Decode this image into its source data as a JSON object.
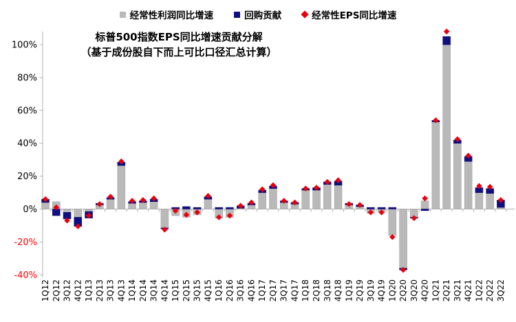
{
  "chart": {
    "title_line1": "标普500指数EPS同比增速贡献分解",
    "title_line2": "（基于成份股自下而上可比口径汇总计算）",
    "legend": [
      {
        "label": "经常性利润同比增速",
        "marker": "square",
        "color": "#b9b9b9"
      },
      {
        "label": "回购贡献",
        "marker": "square",
        "color": "#0f0f82"
      },
      {
        "label": "经常性EPS同比增速",
        "marker": "diamond",
        "color": "#e8000d"
      }
    ]
  },
  "chart_data": {
    "type": "bar",
    "stacked": true,
    "title": "标普500指数EPS同比增速贡献分解（基于成份股自下而上可比口径汇总计算）",
    "categories": [
      "1Q12",
      "2Q12",
      "3Q12",
      "4Q12",
      "1Q13",
      "2Q13",
      "3Q13",
      "4Q13",
      "1Q14",
      "2Q14",
      "3Q14",
      "4Q14",
      "1Q15",
      "2Q15",
      "3Q15",
      "4Q15",
      "1Q16",
      "2Q16",
      "3Q16",
      "4Q16",
      "1Q17",
      "2Q17",
      "3Q17",
      "4Q17",
      "1Q18",
      "2Q18",
      "3Q18",
      "4Q18",
      "1Q19",
      "2Q19",
      "3Q19",
      "4Q19",
      "1Q20",
      "2Q20",
      "3Q20",
      "4Q20",
      "1Q21",
      "2Q21",
      "3Q21",
      "4Q21",
      "1Q22",
      "2Q22",
      "3Q22"
    ],
    "series": [
      {
        "name": "经常性利润同比增速",
        "type": "bar",
        "color": "#b9b9b9",
        "stroke": "#9f9f9f",
        "values": [
          4,
          4.5,
          -2,
          -5,
          -1.5,
          2.5,
          6,
          26.5,
          3.5,
          4,
          4.5,
          -11.5,
          -4,
          -5,
          -3.5,
          6,
          -5.5,
          -5,
          0.5,
          2.5,
          10,
          12.5,
          4,
          3,
          11.5,
          11.5,
          15,
          14.5,
          2.5,
          1.5,
          -2.5,
          -2,
          -16,
          -36,
          -5,
          5,
          53,
          100,
          40,
          29,
          10,
          9.5,
          1
        ]
      },
      {
        "name": "回购贡献",
        "type": "bar",
        "color": "#0f0f82",
        "stroke": "#08086b",
        "values": [
          2,
          -4,
          -4,
          -5.5,
          -4,
          1,
          1,
          2,
          1,
          1,
          1.5,
          -0.5,
          1,
          1.5,
          1,
          1.5,
          1,
          1,
          1.5,
          1,
          1.5,
          1.5,
          1,
          1,
          1,
          1.5,
          1.5,
          2.5,
          1,
          1,
          1,
          1,
          1,
          -1,
          -0.5,
          -1,
          1,
          5,
          2,
          3,
          3,
          3,
          4.5
        ]
      },
      {
        "name": "经常性EPS同比增速",
        "type": "scatter",
        "marker": "diamond",
        "color": "#e8000d",
        "values": [
          6,
          1,
          -7,
          -10.5,
          -4,
          3,
          7.5,
          29,
          5,
          5.5,
          6.5,
          -12.5,
          -1,
          -3.5,
          -2,
          8,
          -5,
          -4,
          2,
          4,
          12,
          14.5,
          5,
          4,
          12.5,
          13,
          16.5,
          17.5,
          3,
          2.5,
          -2,
          -2,
          -17,
          -37,
          -5.5,
          6.5,
          54,
          108,
          42.5,
          32.5,
          14,
          13.5,
          5.5
        ]
      }
    ],
    "ylim": [
      -40,
      110
    ],
    "yticks": [
      100,
      80,
      60,
      40,
      20,
      0,
      -20,
      -40
    ],
    "ytick_suffix": "%",
    "xlabel": "",
    "ylabel": "",
    "grid": false,
    "legend_position": "top",
    "colors": {
      "axis_line": "#b0b0b0",
      "tick_label_positive": "#000000",
      "tick_label_negative": "#ff0000",
      "x_label": "#000000"
    }
  }
}
